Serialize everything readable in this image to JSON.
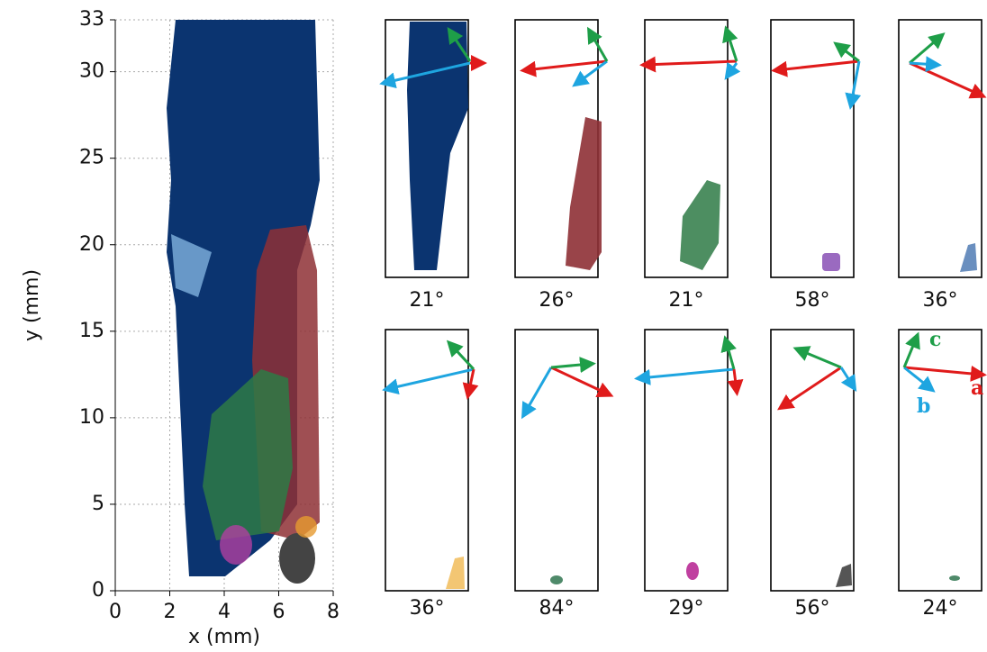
{
  "chart_data": {
    "type": "image",
    "xlabel": "x (mm)",
    "ylabel": "y (mm)",
    "xlim": [
      0,
      8
    ],
    "ylim": [
      0,
      33
    ],
    "xticks": [
      0,
      2,
      4,
      6,
      8
    ],
    "yticks": [
      0,
      5,
      10,
      15,
      20,
      25,
      30,
      33
    ],
    "grid": true,
    "panels": [
      "21°",
      "26°",
      "21°",
      "58°",
      "36°",
      "36°",
      "84°",
      "29°",
      "56°",
      "24°"
    ],
    "axis_labels": [
      "a",
      "b",
      "c"
    ]
  }
}
